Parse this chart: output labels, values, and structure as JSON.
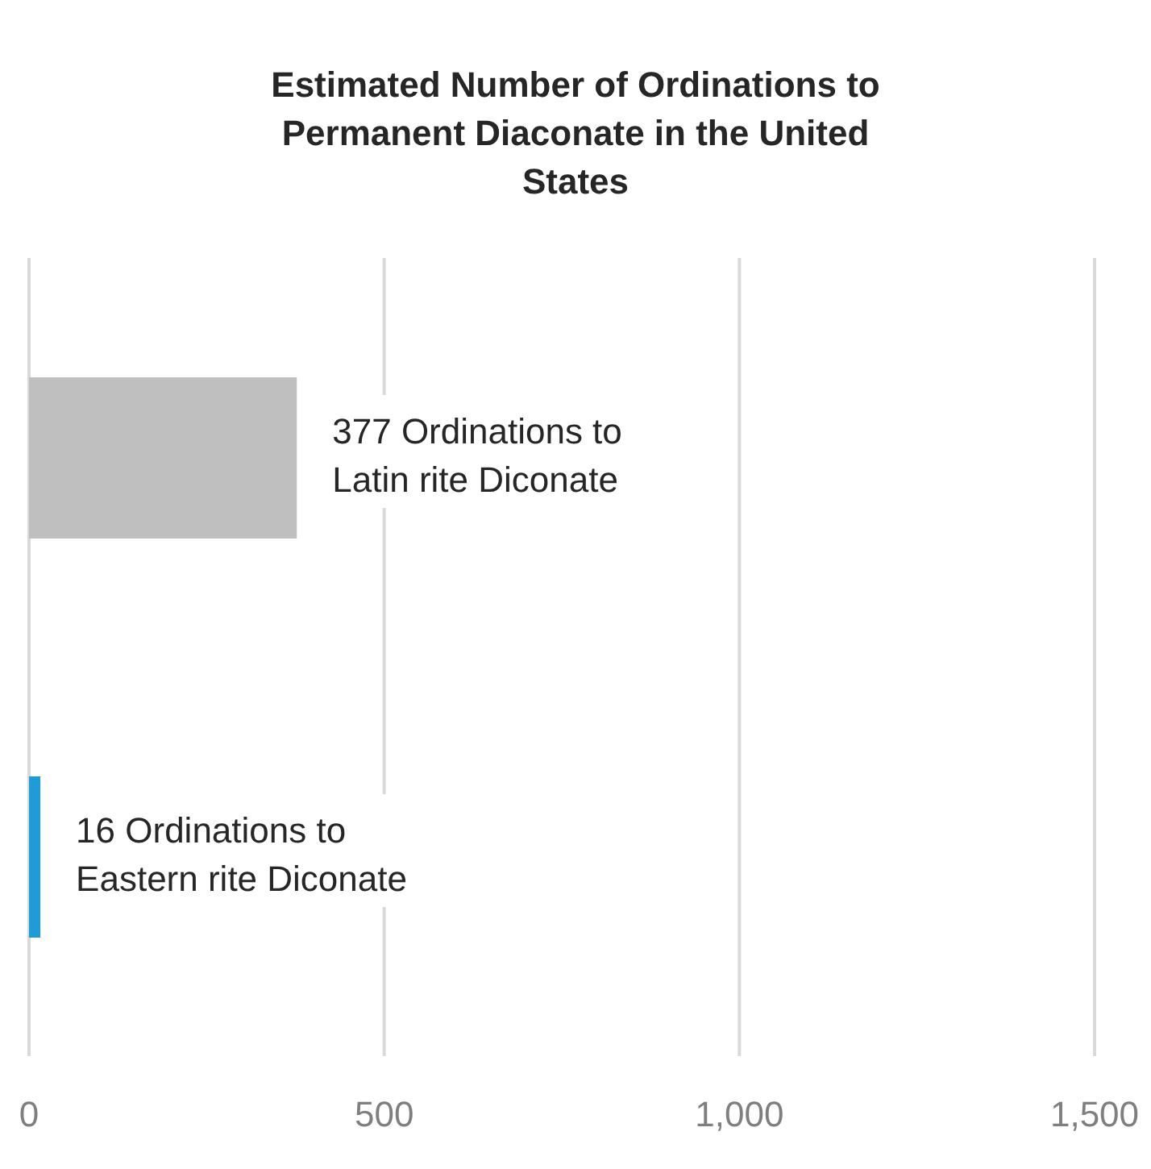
{
  "chart_data": {
    "type": "bar",
    "orientation": "horizontal",
    "title": "Estimated Number of Ordinations to Permanent Diaconate in the United States",
    "categories": [
      null,
      null
    ],
    "values": [
      377,
      16
    ],
    "colors": [
      "#bfbfbf",
      "#1f9bd7"
    ],
    "value_labels": [
      "377 Ordinations to Latin rite Diconate",
      "16 Ordinations to Eastern rite Diconate"
    ],
    "xlim": [
      0,
      1500
    ],
    "xticks": [
      0,
      500,
      {
        "value": 1000,
        "label": "1,000"
      },
      {
        "value": 1500,
        "label": "1,500"
      }
    ],
    "grid": "x",
    "legend": false
  }
}
